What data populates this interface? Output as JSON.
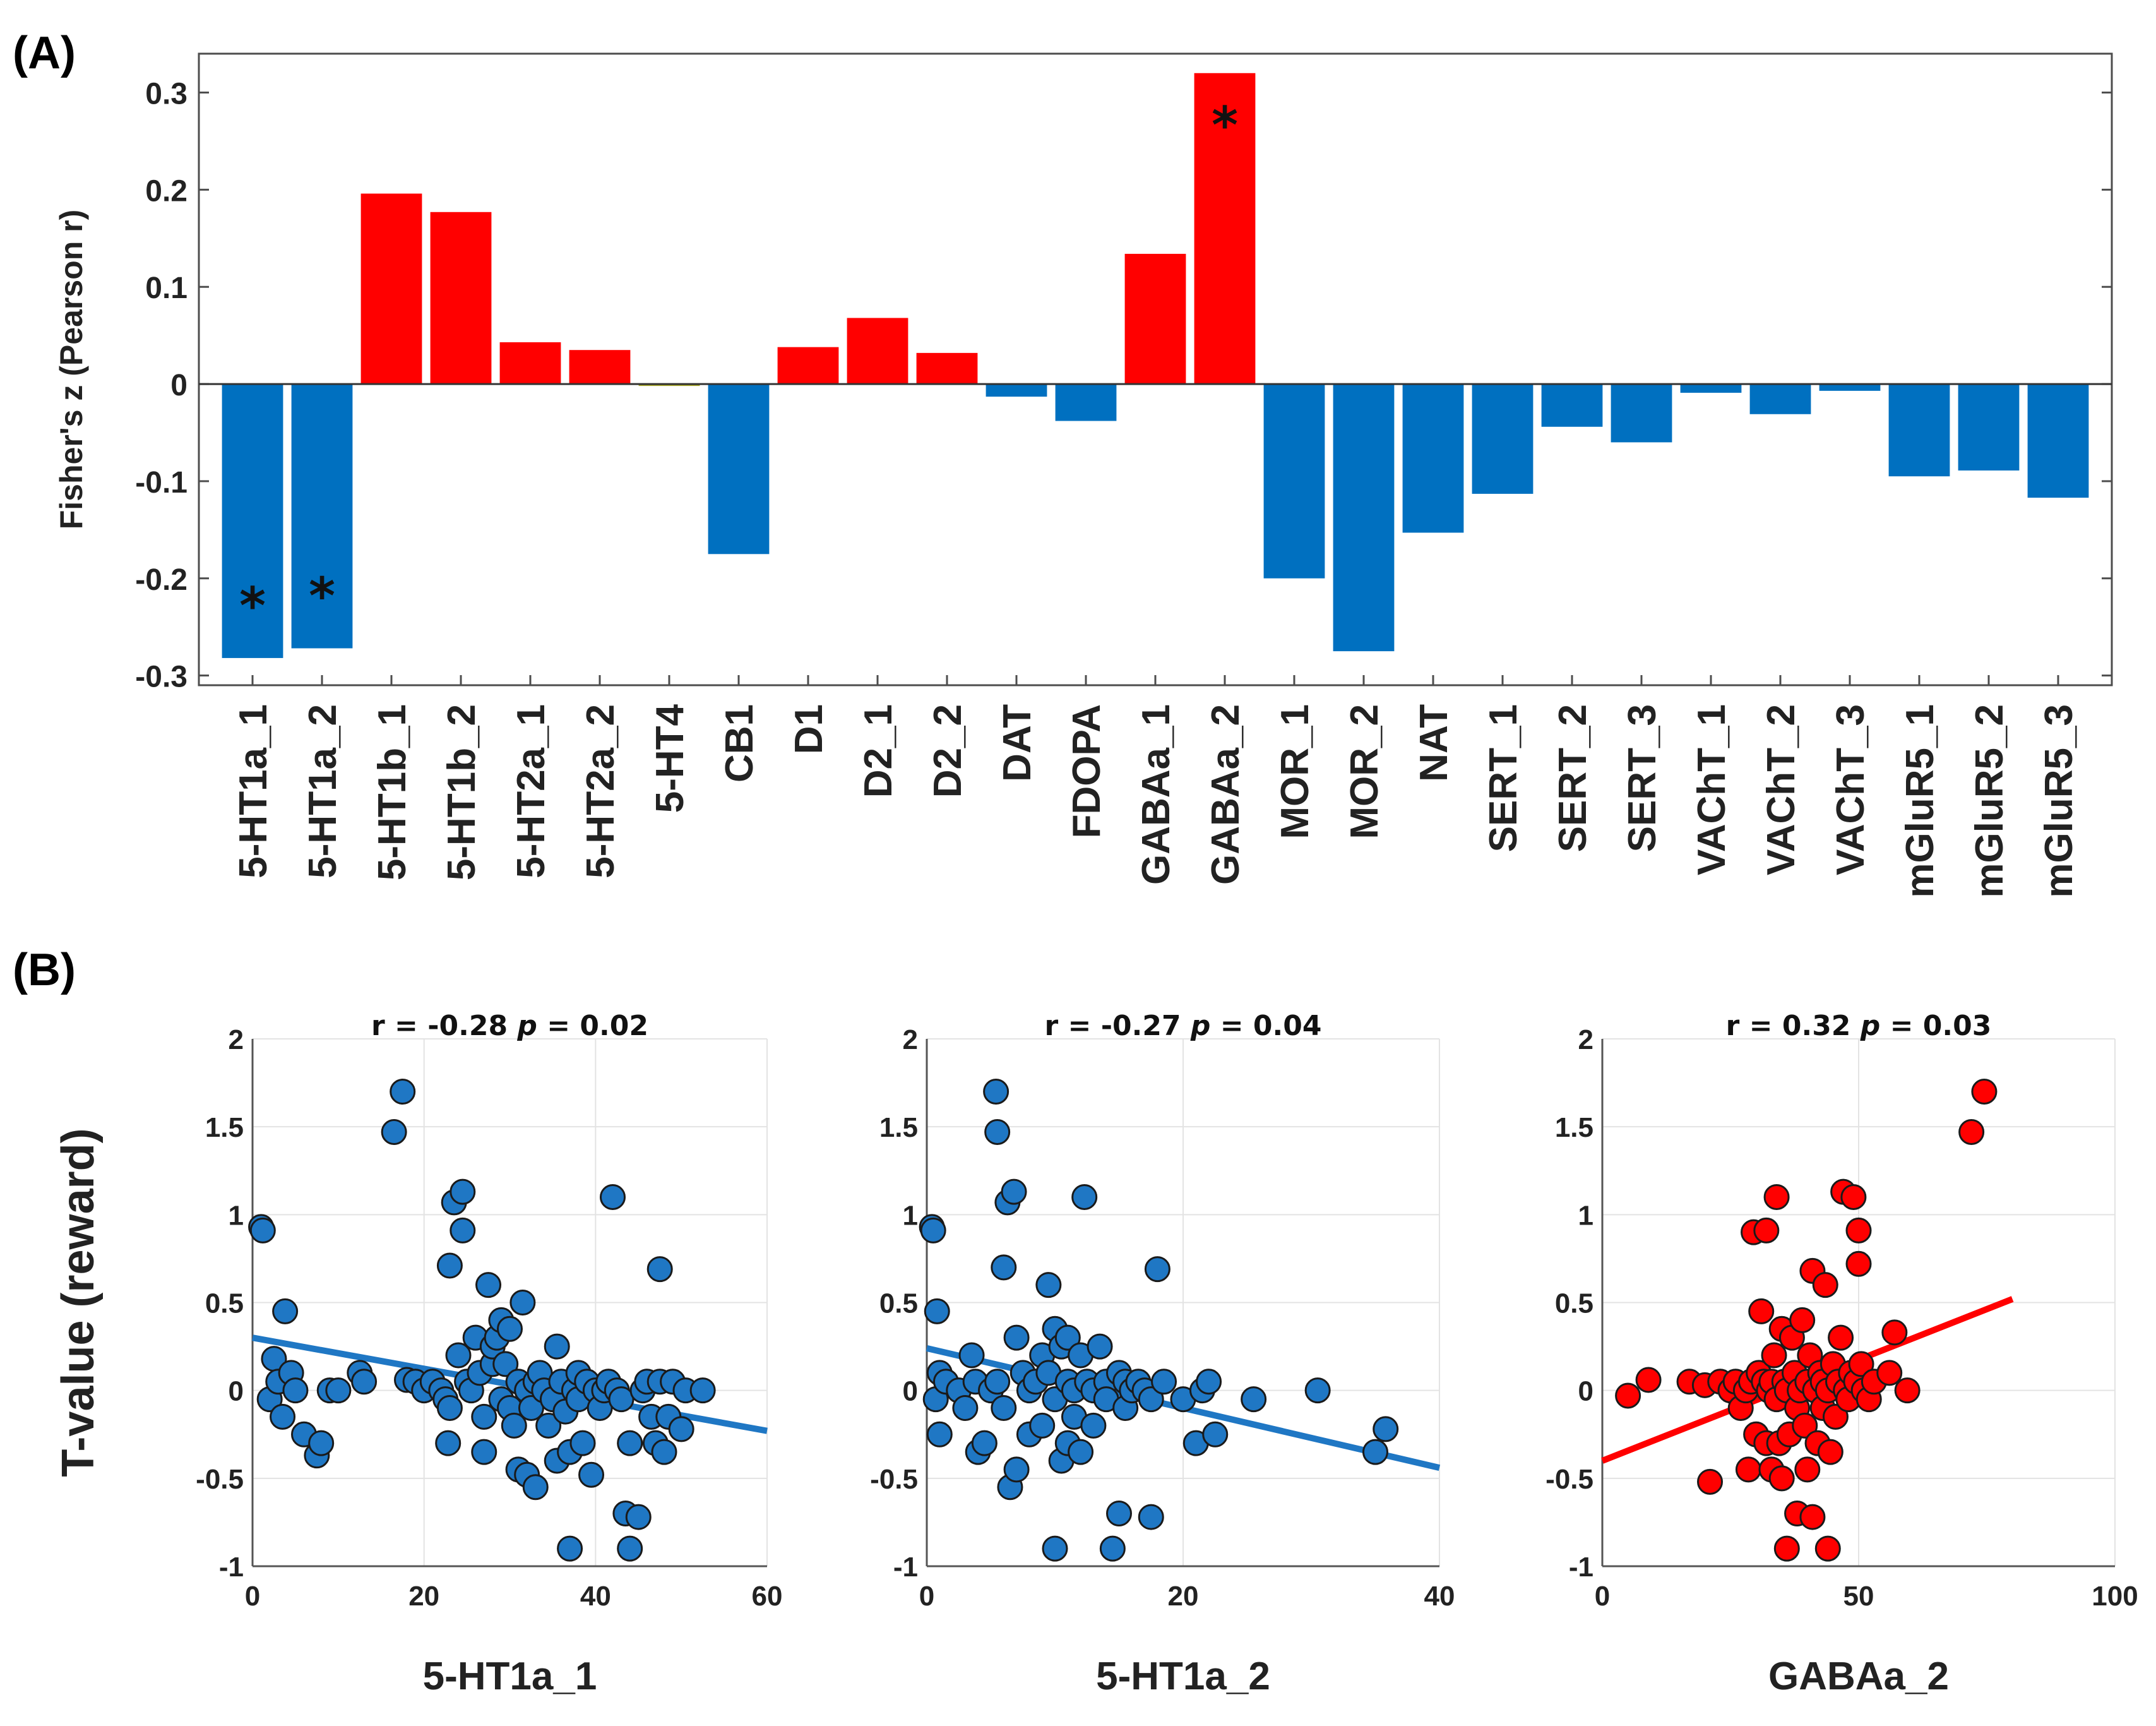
{
  "panels": {
    "a": "(A)",
    "b": "(B)"
  },
  "chart_data": [
    {
      "type": "bar",
      "title": "",
      "ylabel": "Fisher's z (Pearson r)",
      "xlabel": "",
      "ylim": [
        -0.31,
        0.34
      ],
      "yticks": [
        -0.3,
        -0.2,
        -0.1,
        0,
        0.1,
        0.2,
        0.3
      ],
      "ytick_labels": [
        "-0.3",
        "-0.2",
        "-0.1",
        "0",
        "0.1",
        "0.2",
        "0.3"
      ],
      "categories": [
        "5-HT1a_1",
        "5-HT1a_2",
        "5-HT1b_1",
        "5-HT1b_2",
        "5-HT2a_1",
        "5-HT2a_2",
        "5-HT4",
        "CB1",
        "D1",
        "D2_1",
        "D2_2",
        "DAT",
        "FDOPA",
        "GABAa_1",
        "GABAa_2",
        "MOR_1",
        "MOR_2",
        "NAT",
        "SERT_1",
        "SERT_2",
        "SERT_3",
        "VAChT_1",
        "VAChT_2",
        "VAChT_3",
        "mGluR5_1",
        "mGluR5_2",
        "mGluR5_3"
      ],
      "values": [
        -0.282,
        -0.272,
        0.196,
        0.177,
        0.043,
        0.035,
        -0.002,
        -0.175,
        0.038,
        0.068,
        0.032,
        -0.013,
        -0.038,
        0.134,
        0.32,
        -0.2,
        -0.275,
        -0.153,
        -0.113,
        -0.044,
        -0.06,
        -0.009,
        -0.031,
        -0.007,
        -0.095,
        -0.089,
        -0.117
      ],
      "significant": [
        "5-HT1a_1",
        "5-HT1a_2",
        "GABAa_2"
      ],
      "significance_marker": "*",
      "colors": {
        "positive": "#ff0000",
        "negative": "#0070c0",
        "near_zero": "#a8a820"
      }
    },
    {
      "type": "scatter",
      "xlabel": "5-HT1a_1",
      "ylabel": "T-value (reward)",
      "stat_r": "r = -0.28",
      "stat_p_label": "p",
      "stat_p_value": "= 0.02",
      "xlim": [
        0,
        60
      ],
      "ylim": [
        -1,
        2
      ],
      "xticks": [
        0,
        20,
        40,
        60
      ],
      "xtick_labels": [
        "0",
        "20",
        "40",
        "60"
      ],
      "yticks": [
        -1,
        -0.5,
        0,
        0.5,
        1,
        1.5,
        2
      ],
      "ytick_labels": [
        "-1",
        "-0.5",
        "0",
        "0.5",
        "1",
        "1.5",
        "2"
      ],
      "fit_line": {
        "x": [
          0,
          60
        ],
        "y": [
          0.3,
          -0.23
        ]
      },
      "color": "#1f77c4",
      "points": [
        [
          1,
          0.93
        ],
        [
          1.2,
          0.91
        ],
        [
          2,
          -0.05
        ],
        [
          2.5,
          0.18
        ],
        [
          3,
          0.05
        ],
        [
          3.5,
          -0.15
        ],
        [
          3.8,
          0.45
        ],
        [
          4.5,
          0.1
        ],
        [
          5,
          0.0
        ],
        [
          6,
          -0.25
        ],
        [
          7.5,
          -0.37
        ],
        [
          8,
          -0.3
        ],
        [
          9,
          0.0
        ],
        [
          10,
          0.0
        ],
        [
          12.5,
          0.1
        ],
        [
          13,
          0.05
        ],
        [
          16.5,
          1.47
        ],
        [
          17.5,
          1.7
        ],
        [
          18,
          0.06
        ],
        [
          19,
          0.05
        ],
        [
          20,
          0.0
        ],
        [
          21,
          0.05
        ],
        [
          22,
          0.0
        ],
        [
          22.5,
          -0.05
        ],
        [
          23,
          -0.1
        ],
        [
          22.8,
          -0.3
        ],
        [
          23,
          0.71
        ],
        [
          23.5,
          1.07
        ],
        [
          24,
          0.2
        ],
        [
          24.5,
          1.13
        ],
        [
          24.5,
          0.91
        ],
        [
          25,
          0.05
        ],
        [
          25.5,
          0.0
        ],
        [
          26,
          0.3
        ],
        [
          26.5,
          0.1
        ],
        [
          27,
          -0.15
        ],
        [
          27,
          -0.35
        ],
        [
          27.5,
          0.6
        ],
        [
          28,
          0.15
        ],
        [
          28,
          0.25
        ],
        [
          28.5,
          0.3
        ],
        [
          29,
          -0.05
        ],
        [
          29,
          0.4
        ],
        [
          29.5,
          0.15
        ],
        [
          30,
          -0.1
        ],
        [
          30,
          0.35
        ],
        [
          30.5,
          -0.2
        ],
        [
          31,
          0.05
        ],
        [
          31.5,
          0.5
        ],
        [
          31,
          -0.45
        ],
        [
          32,
          -0.48
        ],
        [
          32,
          0.0
        ],
        [
          32.5,
          -0.1
        ],
        [
          33,
          0.05
        ],
        [
          33,
          -0.55
        ],
        [
          33.5,
          0.1
        ],
        [
          34,
          0.0
        ],
        [
          34.5,
          -0.2
        ],
        [
          35,
          -0.05
        ],
        [
          35.5,
          0.25
        ],
        [
          35.5,
          -0.4
        ],
        [
          36,
          0.05
        ],
        [
          36.5,
          -0.12
        ],
        [
          37,
          -0.35
        ],
        [
          37,
          -0.9
        ],
        [
          37.5,
          0.0
        ],
        [
          38,
          -0.05
        ],
        [
          38,
          0.1
        ],
        [
          38.5,
          -0.3
        ],
        [
          39,
          0.05
        ],
        [
          39.5,
          -0.48
        ],
        [
          40,
          0.0
        ],
        [
          40.5,
          -0.1
        ],
        [
          41,
          0.0
        ],
        [
          41.5,
          0.05
        ],
        [
          42,
          1.1
        ],
        [
          42.5,
          0.0
        ],
        [
          43,
          -0.05
        ],
        [
          43.5,
          -0.7
        ],
        [
          44,
          -0.3
        ],
        [
          44,
          -0.9
        ],
        [
          45,
          -0.72
        ],
        [
          45.5,
          0.0
        ],
        [
          46,
          0.05
        ],
        [
          46.5,
          -0.15
        ],
        [
          47,
          -0.3
        ],
        [
          47.5,
          0.69
        ],
        [
          47.5,
          0.05
        ],
        [
          48,
          -0.35
        ],
        [
          48.5,
          -0.15
        ],
        [
          49,
          0.05
        ],
        [
          50,
          -0.22
        ],
        [
          50.5,
          0.0
        ],
        [
          52.5,
          0.0
        ]
      ]
    },
    {
      "type": "scatter",
      "xlabel": "5-HT1a_2",
      "ylabel": "",
      "stat_r": "r = -0.27",
      "stat_p_label": "p",
      "stat_p_value": "= 0.04",
      "xlim": [
        0,
        40
      ],
      "ylim": [
        -1,
        2
      ],
      "xticks": [
        0,
        20,
        40
      ],
      "xtick_labels": [
        "0",
        "20",
        "40"
      ],
      "yticks": [
        -1,
        -0.5,
        0,
        0.5,
        1,
        1.5,
        2
      ],
      "ytick_labels": [
        "-1",
        "-0.5",
        "0",
        "0.5",
        "1",
        "1.5",
        "2"
      ],
      "fit_line": {
        "x": [
          0,
          40
        ],
        "y": [
          0.24,
          -0.44
        ]
      },
      "color": "#1f77c4",
      "points": [
        [
          0.4,
          0.93
        ],
        [
          0.5,
          0.91
        ],
        [
          0.7,
          -0.05
        ],
        [
          0.8,
          0.45
        ],
        [
          1,
          0.1
        ],
        [
          1,
          -0.25
        ],
        [
          1.5,
          0.05
        ],
        [
          2.5,
          0.0
        ],
        [
          3,
          -0.1
        ],
        [
          3.5,
          0.2
        ],
        [
          3.8,
          0.05
        ],
        [
          4,
          -0.35
        ],
        [
          4.5,
          -0.3
        ],
        [
          5,
          0.0
        ],
        [
          5.4,
          1.7
        ],
        [
          5.5,
          1.47
        ],
        [
          5.5,
          0.05
        ],
        [
          6,
          0.7
        ],
        [
          6,
          -0.1
        ],
        [
          6.3,
          1.07
        ],
        [
          6.5,
          -0.55
        ],
        [
          6.8,
          1.13
        ],
        [
          7,
          -0.45
        ],
        [
          7,
          0.3
        ],
        [
          7.5,
          0.1
        ],
        [
          8,
          -0.25
        ],
        [
          8,
          0.0
        ],
        [
          8.5,
          0.05
        ],
        [
          9,
          0.2
        ],
        [
          9,
          -0.2
        ],
        [
          9.5,
          0.6
        ],
        [
          9.5,
          0.1
        ],
        [
          10,
          0.35
        ],
        [
          10,
          -0.05
        ],
        [
          10,
          -0.9
        ],
        [
          10.5,
          0.25
        ],
        [
          10.5,
          -0.4
        ],
        [
          11,
          0.05
        ],
        [
          11,
          -0.3
        ],
        [
          11,
          0.3
        ],
        [
          11.5,
          0.0
        ],
        [
          11.5,
          -0.15
        ],
        [
          12,
          0.2
        ],
        [
          12,
          -0.35
        ],
        [
          12.3,
          1.1
        ],
        [
          12.5,
          0.05
        ],
        [
          13,
          -0.2
        ],
        [
          13,
          0.0
        ],
        [
          13.5,
          0.25
        ],
        [
          14,
          0.05
        ],
        [
          14,
          -0.05
        ],
        [
          14.5,
          -0.9
        ],
        [
          15,
          0.1
        ],
        [
          15,
          -0.7
        ],
        [
          15.5,
          0.05
        ],
        [
          15.5,
          -0.1
        ],
        [
          16,
          0.0
        ],
        [
          16.5,
          0.05
        ],
        [
          17,
          0.0
        ],
        [
          17.5,
          -0.05
        ],
        [
          17.5,
          -0.72
        ],
        [
          18,
          0.69
        ],
        [
          18.5,
          0.05
        ],
        [
          20,
          -0.05
        ],
        [
          21,
          -0.3
        ],
        [
          21.5,
          0.0
        ],
        [
          22,
          0.05
        ],
        [
          22.5,
          -0.25
        ],
        [
          25.5,
          -0.05
        ],
        [
          30.5,
          0.0
        ],
        [
          35,
          -0.35
        ],
        [
          35.8,
          -0.22
        ]
      ]
    },
    {
      "type": "scatter",
      "xlabel": "GABAa_2",
      "ylabel": "",
      "stat_r": "r = 0.32",
      "stat_p_label": "p",
      "stat_p_value": "= 0.03",
      "xlim": [
        0,
        100
      ],
      "ylim": [
        -1,
        2
      ],
      "xticks": [
        0,
        50,
        100
      ],
      "xtick_labels": [
        "0",
        "50",
        "100"
      ],
      "yticks": [
        -1,
        -0.5,
        0,
        0.5,
        1,
        1.5,
        2
      ],
      "ytick_labels": [
        "-1",
        "-0.5",
        "0",
        "0.5",
        "1",
        "1.5",
        "2"
      ],
      "fit_line": {
        "x": [
          0,
          80
        ],
        "y": [
          -0.4,
          0.52
        ]
      },
      "color": "#ff0000",
      "points": [
        [
          5,
          -0.03
        ],
        [
          9,
          0.06
        ],
        [
          17,
          0.05
        ],
        [
          20,
          0.03
        ],
        [
          21,
          -0.52
        ],
        [
          23,
          0.05
        ],
        [
          25,
          0.0
        ],
        [
          26,
          0.05
        ],
        [
          27,
          -0.1
        ],
        [
          28,
          0.0
        ],
        [
          28.5,
          -0.45
        ],
        [
          29,
          0.05
        ],
        [
          29.5,
          0.9
        ],
        [
          30,
          -0.25
        ],
        [
          30.5,
          0.1
        ],
        [
          31,
          0.45
        ],
        [
          31.5,
          0.05
        ],
        [
          32,
          0.91
        ],
        [
          32,
          -0.3
        ],
        [
          32.5,
          0.0
        ],
        [
          33,
          0.05
        ],
        [
          33,
          -0.45
        ],
        [
          33.5,
          0.2
        ],
        [
          34,
          -0.05
        ],
        [
          34,
          1.1
        ],
        [
          34.5,
          -0.3
        ],
        [
          35,
          0.35
        ],
        [
          35,
          -0.5
        ],
        [
          35.5,
          0.05
        ],
        [
          36,
          0.0
        ],
        [
          36,
          -0.9
        ],
        [
          36.5,
          -0.25
        ],
        [
          37,
          0.3
        ],
        [
          37.5,
          0.1
        ],
        [
          38,
          -0.7
        ],
        [
          38,
          -0.1
        ],
        [
          38.5,
          0.0
        ],
        [
          39,
          0.4
        ],
        [
          39.5,
          -0.2
        ],
        [
          40,
          0.05
        ],
        [
          40,
          -0.45
        ],
        [
          40.5,
          0.2
        ],
        [
          41,
          0.68
        ],
        [
          41,
          -0.72
        ],
        [
          41.5,
          0.0
        ],
        [
          42,
          -0.3
        ],
        [
          42.5,
          0.1
        ],
        [
          43,
          0.05
        ],
        [
          43,
          -0.1
        ],
        [
          43.5,
          0.6
        ],
        [
          44,
          -0.9
        ],
        [
          44,
          0.0
        ],
        [
          44.5,
          -0.35
        ],
        [
          45,
          0.15
        ],
        [
          45.5,
          -0.15
        ],
        [
          46,
          0.05
        ],
        [
          46.5,
          0.3
        ],
        [
          47,
          1.13
        ],
        [
          47.5,
          0.0
        ],
        [
          48,
          -0.05
        ],
        [
          48.5,
          0.1
        ],
        [
          49,
          1.1
        ],
        [
          49.5,
          0.05
        ],
        [
          50,
          0.91
        ],
        [
          50,
          0.72
        ],
        [
          50.5,
          0.15
        ],
        [
          51,
          0.0
        ],
        [
          52,
          -0.05
        ],
        [
          53,
          0.05
        ],
        [
          56,
          0.1
        ],
        [
          57,
          0.33
        ],
        [
          59.5,
          0.0
        ],
        [
          72,
          1.47
        ],
        [
          74.5,
          1.7
        ]
      ]
    }
  ]
}
